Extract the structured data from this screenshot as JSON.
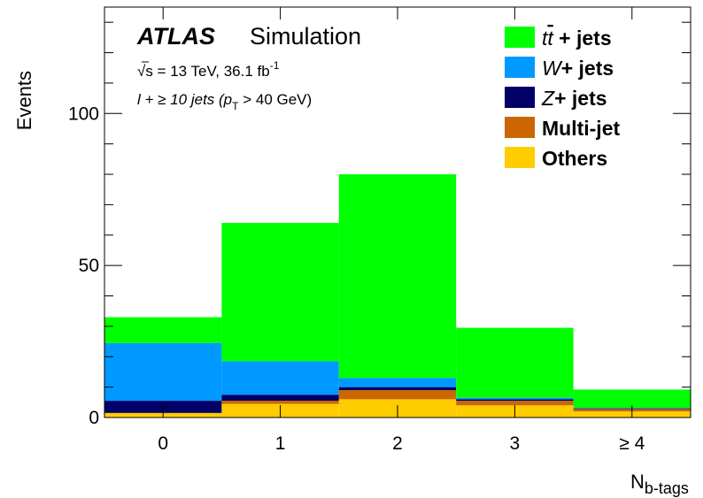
{
  "chart_data": {
    "type": "bar",
    "stacked": true,
    "categories": [
      "0",
      "1",
      "2",
      "3",
      "≥ 4"
    ],
    "series": [
      {
        "name": "Others",
        "color": "#ffcc00",
        "values": [
          1.5,
          4.5,
          6.0,
          4.0,
          2.0
        ]
      },
      {
        "name": "Multi-jet",
        "color": "#cc6600",
        "values": [
          0.0,
          1.0,
          3.0,
          1.5,
          0.8
        ]
      },
      {
        "name": "Z+ jets",
        "color": "#000066",
        "values": [
          4.0,
          2.0,
          1.0,
          0.5,
          0.2
        ]
      },
      {
        "name": "W+ jets",
        "color": "#0099ff",
        "values": [
          19.0,
          11.0,
          3.0,
          0.5,
          0.2
        ]
      },
      {
        "name": "tt̄ + jets",
        "color": "#00ff00",
        "values": [
          8.5,
          45.5,
          67.0,
          23.0,
          6.0
        ]
      }
    ],
    "ylabel": "Events",
    "xlabel": "N",
    "xlabel_sub": "b-tags",
    "ylim": [
      0,
      135
    ],
    "yticks": [
      "0",
      "50",
      "100"
    ],
    "legend_position": "top-right",
    "legend": [
      {
        "label_pre": "t",
        "label_bar": "t",
        "label_post": " + jets",
        "color": "#00ff00"
      },
      {
        "label_pre": "W",
        "label_bar": "",
        "label_post": "+ jets",
        "color": "#0099ff"
      },
      {
        "label_pre": "Z",
        "label_bar": "",
        "label_post": "+ jets",
        "color": "#000066"
      },
      {
        "label_pre": "",
        "label_bar": "",
        "label_post": "Multi-jet",
        "color": "#cc6600"
      },
      {
        "label_pre": "",
        "label_bar": "",
        "label_post": "Others",
        "color": "#ffcc00"
      }
    ],
    "annotations": {
      "atlas": "ATLAS",
      "simulation": "Simulation",
      "sqrt_s": "√s = 13 TeV, 36.1 fb",
      "lumi_sup": "-1",
      "selection_pre": "l + ≥ 10 jets (p",
      "selection_sub": "T",
      "selection_post": " > 40 GeV)"
    }
  }
}
